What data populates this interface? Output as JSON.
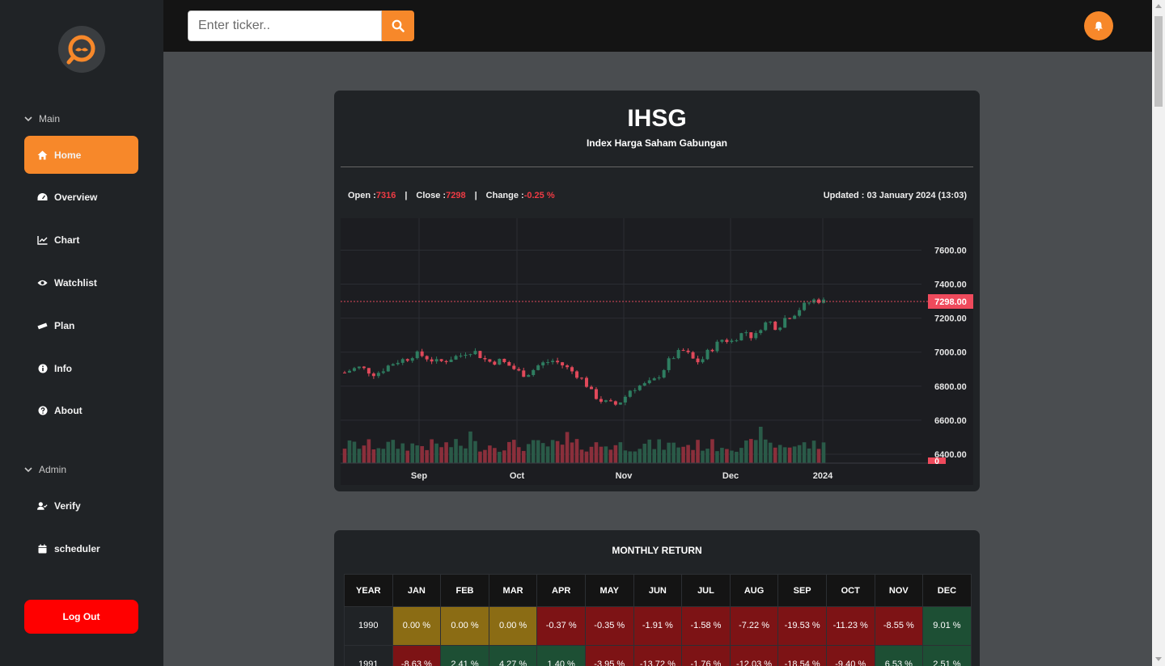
{
  "sidebar": {
    "logo_icon": "magnifier-mustache-logo",
    "sections": {
      "main": "Main",
      "admin": "Admin"
    },
    "items": [
      {
        "label": "Home",
        "icon": "home-icon",
        "active": true
      },
      {
        "label": "Overview",
        "icon": "gauge-icon"
      },
      {
        "label": "Chart",
        "icon": "line-chart-icon"
      },
      {
        "label": "Watchlist",
        "icon": "eye-icon"
      },
      {
        "label": "Plan",
        "icon": "ruler-icon"
      },
      {
        "label": "Info",
        "icon": "info-icon"
      },
      {
        "label": "About",
        "icon": "question-icon"
      }
    ],
    "admin_items": [
      {
        "label": "Verify",
        "icon": "user-check-icon"
      },
      {
        "label": "scheduler",
        "icon": "calendar-icon"
      }
    ],
    "logout_label": "Log Out"
  },
  "topbar": {
    "search_placeholder": "Enter ticker..",
    "search_icon": "search-icon",
    "bell_icon": "bell-icon"
  },
  "colors": {
    "accent": "#f7882a",
    "up": "#26a69a",
    "down": "#ef5350",
    "logout": "#ff0000"
  },
  "chart": {
    "title": "IHSG",
    "subtitle": "Index Harga Saham Gabungan",
    "open_label": "Open : ",
    "open_value": "7316",
    "close_label": "Close : ",
    "close_value": "7298",
    "change_label": "Change : ",
    "change_value": "-0.25 %",
    "separator": "|",
    "updated": "Updated : 03 January 2024 (13:03)"
  },
  "chart_data": {
    "type": "candlestick",
    "x_ticks": [
      "Sep",
      "Oct",
      "Nov",
      "Dec",
      "2024"
    ],
    "y_ticks": [
      "7600.00",
      "7400.00",
      "7200.00",
      "7000.00",
      "6800.00",
      "6600.00",
      "6400.00"
    ],
    "ylim": [
      6300,
      7740
    ],
    "last_price_label": "7298.00",
    "last_price": 7298,
    "volume_label": "0",
    "grid": true,
    "close_path": [
      6880,
      6900,
      6910,
      6890,
      6870,
      6900,
      6930,
      6950,
      6960,
      6990,
      6980,
      6960,
      6940,
      6950,
      6970,
      6980,
      7010,
      7000,
      6960,
      6940,
      6950,
      6930,
      6900,
      6870,
      6880,
      6920,
      6940,
      6950,
      6930,
      6900,
      6870,
      6830,
      6760,
      6720,
      6700,
      6690,
      6720,
      6780,
      6800,
      6810,
      6830,
      6880,
      6950,
      6990,
      7010,
      6960,
      6940,
      7000,
      7040,
      7080,
      7060,
      7100,
      7120,
      7080,
      7160,
      7180,
      7140,
      7200,
      7220,
      7260,
      7290,
      7310,
      7298
    ]
  },
  "monthly_return": {
    "title": "MONTHLY RETURN",
    "headers": [
      "YEAR",
      "JAN",
      "FEB",
      "MAR",
      "APR",
      "MAY",
      "JUN",
      "JUL",
      "AUG",
      "SEP",
      "OCT",
      "NOV",
      "DEC"
    ],
    "rows": [
      {
        "year": "1990",
        "cells": [
          {
            "v": "0.00 %",
            "c": "neu"
          },
          {
            "v": "0.00 %",
            "c": "neu"
          },
          {
            "v": "0.00 %",
            "c": "neu"
          },
          {
            "v": "-0.37 %",
            "c": "neg"
          },
          {
            "v": "-0.35 %",
            "c": "neg"
          },
          {
            "v": "-1.91 %",
            "c": "neg"
          },
          {
            "v": "-1.58 %",
            "c": "neg"
          },
          {
            "v": "-7.22 %",
            "c": "neg"
          },
          {
            "v": "-19.53 %",
            "c": "neg"
          },
          {
            "v": "-11.23 %",
            "c": "neg"
          },
          {
            "v": "-8.55 %",
            "c": "neg"
          },
          {
            "v": "9.01 %",
            "c": "pos"
          }
        ]
      },
      {
        "year": "1991",
        "cells": [
          {
            "v": "-8.63 %",
            "c": "neg"
          },
          {
            "v": "2.41 %",
            "c": "pos"
          },
          {
            "v": "4.27 %",
            "c": "pos"
          },
          {
            "v": "1.40 %",
            "c": "pos"
          },
          {
            "v": "-3.95 %",
            "c": "neg"
          },
          {
            "v": "-13.72 %",
            "c": "neg"
          },
          {
            "v": "-1.76 %",
            "c": "neg"
          },
          {
            "v": "-12.03 %",
            "c": "neg"
          },
          {
            "v": "-18.54 %",
            "c": "neg"
          },
          {
            "v": "-9.40 %",
            "c": "neg"
          },
          {
            "v": "6.53 %",
            "c": "pos"
          },
          {
            "v": "2.51 %",
            "c": "pos"
          }
        ]
      }
    ]
  }
}
